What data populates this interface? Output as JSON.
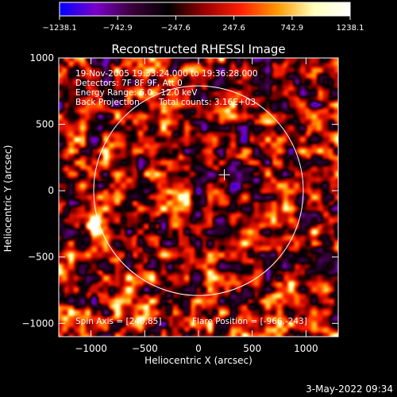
{
  "chart_data": {
    "type": "heatmap",
    "title": "Reconstructed RHESSI Image",
    "xlabel": "Heliocentric X (arcsec)",
    "ylabel": "Heliocentric Y (arcsec)",
    "xlim": [
      -1300,
      1300
    ],
    "ylim": [
      -1100,
      1000
    ],
    "x_ticks": [
      -1000,
      -500,
      0,
      500,
      1000
    ],
    "y_ticks": [
      -1000,
      -500,
      0,
      500,
      1000
    ],
    "x_tick_labels": [
      "−1000",
      "−500",
      "0",
      "500",
      "1000"
    ],
    "y_tick_labels": [
      "−1000",
      "−500",
      "0",
      "500",
      "1000"
    ],
    "colorbar": {
      "min": -1238.1,
      "max": 1238.1,
      "ticks": [
        -1238.1,
        -742.9,
        -247.6,
        247.6,
        742.9,
        1238.1
      ],
      "tick_labels": [
        "−1238.1",
        "−742.9",
        "−247.6",
        "247.6",
        "742.9",
        "1238.1"
      ],
      "colors": [
        "#0000ff",
        "#7a00c8",
        "#3a003a",
        "#000000",
        "#9a0000",
        "#ff2000",
        "#ff9900",
        "#ffffbb",
        "#ffffff"
      ]
    },
    "solar_disk": {
      "center": [
        0,
        0
      ],
      "radius_arcsec": 975
    },
    "flare_marker": {
      "x": 240,
      "y": 120
    },
    "hot_spot": {
      "x": -966,
      "y": -243
    },
    "grid": false
  },
  "annotations": {
    "time_range": "19-Nov-2005 19:33:24.000 to 19:36:28.000",
    "detectors": "Detectors: 7F 8F 9F, Att 0",
    "energy": "Energy Range: 6.0 - 12.0 keV",
    "method": "Back Projection",
    "counts": "Total counts: 3.16E+03",
    "spin_axis": "Spin Axis = [240,85]",
    "flare_position": "Flare Position = [-966,-243]"
  },
  "footer": {
    "date": "3-May-2022 09:34"
  }
}
